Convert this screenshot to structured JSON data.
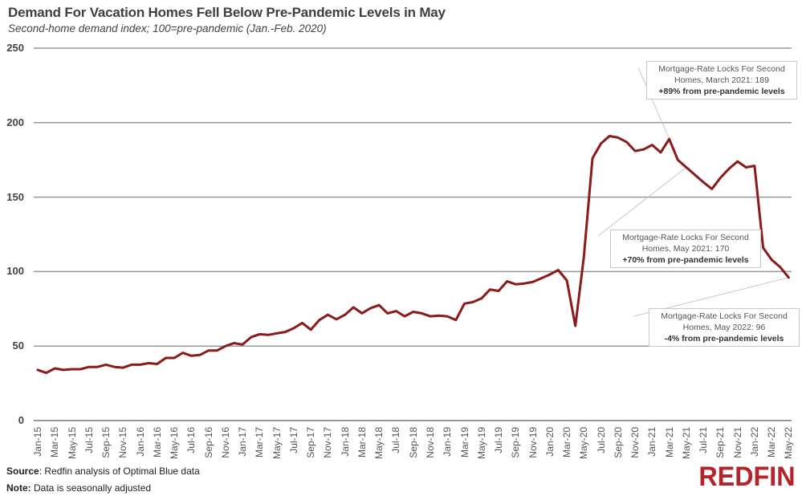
{
  "header": {
    "title": "Demand For Vacation Homes Fell Below Pre-Pandemic Levels in May",
    "subtitle": "Second-home demand index; 100=pre-pandemic (Jan.-Feb. 2020)"
  },
  "footer": {
    "source_label": "Source",
    "source_text": ": Redfin analysis of Optimal Blue data",
    "note_label": "Note:",
    "note_text": " Data is seasonally adjusted",
    "logo": "REDFIN"
  },
  "colors": {
    "line": "#8b1a1a",
    "grid": "#999999",
    "logo": "#b5232b"
  },
  "annotations": [
    {
      "line1": "Mortgage-Rate Locks For Second",
      "line2": "Homes, March 2021: 189",
      "line3": "+89% from pre-pandemic levels"
    },
    {
      "line1": "Mortgage-Rate Locks For Second",
      "line2": "Homes, May 2021: 170",
      "line3": "+70% from pre-pandemic levels"
    },
    {
      "line1": "Mortgage-Rate Locks For Second",
      "line2": "Homes, May 2022: 96",
      "line3": "-4% from pre-pandemic levels"
    }
  ],
  "chart_data": {
    "type": "line",
    "title": "Demand For Vacation Homes Fell Below Pre-Pandemic Levels in May",
    "subtitle": "Second-home demand index; 100=pre-pandemic (Jan.-Feb. 2020)",
    "xlabel": "",
    "ylabel": "",
    "ylim": [
      0,
      250
    ],
    "yticks": [
      0,
      50,
      100,
      150,
      200,
      250
    ],
    "grid": true,
    "legend": null,
    "xtick_labels": [
      "Jan-15",
      "Mar-15",
      "May-15",
      "Jul-15",
      "Sep-15",
      "Nov-15",
      "Jan-16",
      "Mar-16",
      "May-16",
      "Jul-16",
      "Sep-16",
      "Nov-16",
      "Jan-17",
      "Mar-17",
      "May-17",
      "Jul-17",
      "Sep-17",
      "Nov-17",
      "Jan-18",
      "Mar-18",
      "May-18",
      "Jul-18",
      "Sep-18",
      "Nov-18",
      "Jan-19",
      "Mar-19",
      "May-19",
      "Jul-19",
      "Sep-19",
      "Nov-19",
      "Jan-20",
      "Mar-20",
      "May-20",
      "Jul-20",
      "Sep-20",
      "Nov-20",
      "Jan-21",
      "Mar-21",
      "May-21",
      "Jul-21",
      "Sep-21",
      "Nov-21",
      "Jan-22",
      "Mar-22",
      "May-22"
    ],
    "x": [
      "Jan-15",
      "Feb-15",
      "Mar-15",
      "Apr-15",
      "May-15",
      "Jun-15",
      "Jul-15",
      "Aug-15",
      "Sep-15",
      "Oct-15",
      "Nov-15",
      "Dec-15",
      "Jan-16",
      "Feb-16",
      "Mar-16",
      "Apr-16",
      "May-16",
      "Jun-16",
      "Jul-16",
      "Aug-16",
      "Sep-16",
      "Oct-16",
      "Nov-16",
      "Dec-16",
      "Jan-17",
      "Feb-17",
      "Mar-17",
      "Apr-17",
      "May-17",
      "Jun-17",
      "Jul-17",
      "Aug-17",
      "Sep-17",
      "Oct-17",
      "Nov-17",
      "Dec-17",
      "Jan-18",
      "Feb-18",
      "Mar-18",
      "Apr-18",
      "May-18",
      "Jun-18",
      "Jul-18",
      "Aug-18",
      "Sep-18",
      "Oct-18",
      "Nov-18",
      "Dec-18",
      "Jan-19",
      "Feb-19",
      "Mar-19",
      "Apr-19",
      "May-19",
      "Jun-19",
      "Jul-19",
      "Aug-19",
      "Sep-19",
      "Oct-19",
      "Nov-19",
      "Dec-19",
      "Jan-20",
      "Feb-20",
      "Mar-20",
      "Apr-20",
      "May-20",
      "Jun-20",
      "Jul-20",
      "Aug-20",
      "Sep-20",
      "Oct-20",
      "Nov-20",
      "Dec-20",
      "Jan-21",
      "Feb-21",
      "Mar-21",
      "Apr-21",
      "May-21",
      "Jun-21",
      "Jul-21",
      "Aug-21",
      "Sep-21",
      "Oct-21",
      "Nov-21",
      "Dec-21",
      "Jan-22",
      "Feb-22",
      "Mar-22",
      "Apr-22",
      "May-22"
    ],
    "series": [
      {
        "name": "Second-home demand index",
        "color": "#8b1a1a",
        "values": [
          34,
          32,
          35,
          34,
          34.5,
          34.5,
          36,
          36,
          37.5,
          36,
          35.5,
          37.5,
          37.5,
          38.5,
          38,
          42,
          42,
          45.5,
          43.5,
          44,
          47,
          47,
          50,
          52,
          51,
          56,
          58,
          57.5,
          58.5,
          59.5,
          62,
          65.5,
          61,
          67.5,
          71,
          68,
          71,
          76,
          72,
          75.5,
          77.5,
          72,
          73.5,
          70,
          73,
          72,
          70,
          70.5,
          70,
          67.5,
          78.5,
          79.5,
          82,
          88,
          87,
          93.5,
          91.5,
          92,
          93,
          95.5,
          98,
          101,
          94,
          63.5,
          110,
          176,
          186,
          191,
          190,
          187,
          181,
          182,
          185,
          180,
          189,
          175,
          170,
          165,
          160,
          155.5,
          163,
          169,
          174,
          170,
          171,
          116,
          108,
          103,
          96
        ]
      }
    ],
    "annotations": [
      {
        "x": "Mar-21",
        "y": 189,
        "text": "Mortgage-Rate Locks For Second Homes, March 2021: 189 +89% from pre-pandemic levels"
      },
      {
        "x": "May-21",
        "y": 170,
        "text": "Mortgage-Rate Locks For Second Homes, May 2021: 170 +70% from pre-pandemic levels"
      },
      {
        "x": "May-22",
        "y": 96,
        "text": "Mortgage-Rate Locks For Second Homes, May 2022: 96 -4% from pre-pandemic levels"
      }
    ]
  }
}
